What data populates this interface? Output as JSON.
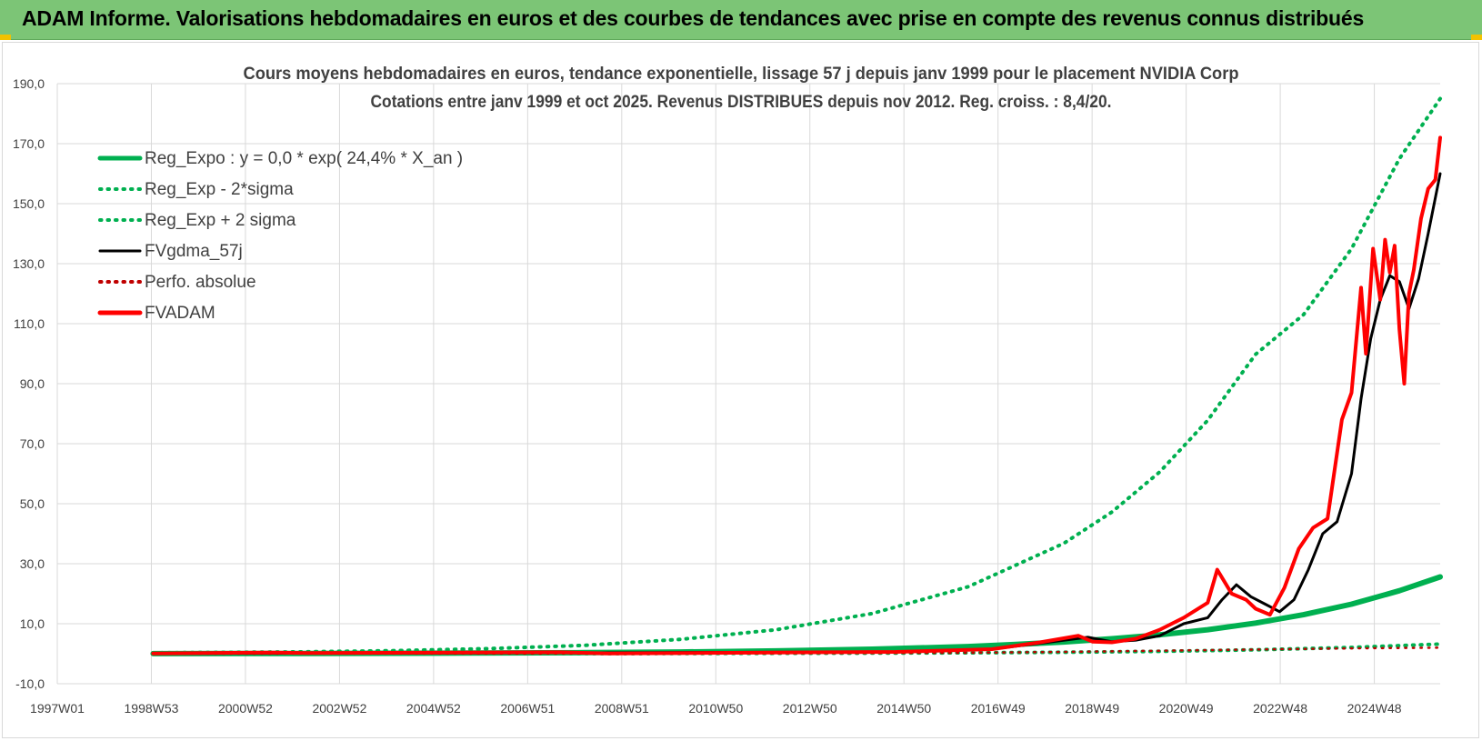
{
  "banner": {
    "title": "ADAM Informe. Valorisations hebdomadaires en euros et des courbes de tendances avec prise en compte des revenus connus distribués",
    "background": "#7cc576"
  },
  "chart_data": {
    "type": "line",
    "title_line1": "Cours moyens hebdomadaires en euros, tendance exponentielle, lissage 57 j depuis janv 1999 pour le placement NVIDIA Corp",
    "title_line2": "Cotations entre janv 1999 et oct 2025. Revenus DISTRIBUES depuis nov 2012.  Reg. croiss. : 8,4/20.",
    "x_tick_labels": [
      "1997W01",
      "1998W53",
      "2000W52",
      "2002W52",
      "2004W52",
      "2006W51",
      "2008W51",
      "2010W50",
      "2012W50",
      "2014W50",
      "2016W49",
      "2018W49",
      "2020W49",
      "2022W48",
      "2024W48"
    ],
    "x_range": [
      1997.0,
      2025.85
    ],
    "ylim": [
      -10,
      190
    ],
    "y_ticks": [
      -10,
      10,
      30,
      50,
      70,
      90,
      110,
      130,
      150,
      170,
      190
    ],
    "y_tick_labels": [
      "-10,0",
      "10,0",
      "30,0",
      "50,0",
      "70,0",
      "90,0",
      "110,0",
      "130,0",
      "150,0",
      "170,0",
      "190,0"
    ],
    "grid": true,
    "legend_position": "top-left",
    "series": [
      {
        "name": "Reg_Expo : y = 0,0 * exp( 24,4% *  X_an )",
        "color": "#00b050",
        "style": "solid",
        "x": [
          1999.0,
          2002.0,
          2005.0,
          2008.0,
          2010.0,
          2012.0,
          2014.0,
          2016.0,
          2017.0,
          2018.0,
          2019.0,
          2020.0,
          2021.0,
          2022.0,
          2023.0,
          2024.0,
          2025.0,
          2025.85
        ],
        "y": [
          0.04,
          0.08,
          0.17,
          0.35,
          0.57,
          0.93,
          1.5,
          2.4,
          3.1,
          3.9,
          5.0,
          6.3,
          8.0,
          10.2,
          13.0,
          16.5,
          21.0,
          25.6
        ]
      },
      {
        "name": "Reg_Exp - 2*sigma",
        "color": "#00b050",
        "style": "dotted",
        "x": [
          1999.0,
          2005.0,
          2010.0,
          2014.0,
          2016.0,
          2018.0,
          2020.0,
          2022.0,
          2024.0,
          2025.85
        ],
        "y": [
          0.01,
          0.03,
          0.07,
          0.2,
          0.3,
          0.5,
          0.8,
          1.3,
          2.1,
          3.2
        ]
      },
      {
        "name": "Reg_Exp + 2 sigma",
        "color": "#00b050",
        "style": "dotted",
        "x": [
          1999.0,
          2002.0,
          2004.0,
          2006.0,
          2008.0,
          2010.0,
          2012.0,
          2014.0,
          2016.0,
          2018.0,
          2019.0,
          2020.0,
          2021.0,
          2022.0,
          2023.0,
          2024.0,
          2025.0,
          2025.85
        ],
        "y": [
          0.3,
          0.6,
          1.0,
          1.7,
          2.8,
          4.8,
          8.0,
          13.4,
          22.3,
          36.8,
          47.2,
          60.6,
          77.8,
          99.8,
          113.0,
          135.0,
          165.0,
          185.0
        ]
      },
      {
        "name": "FVgdma_57j",
        "color": "#000000",
        "style": "solid",
        "x": [
          1999.0,
          2007.5,
          2014.5,
          2016.5,
          2017.5,
          2018.5,
          2019.0,
          2019.5,
          2020.0,
          2020.5,
          2021.0,
          2021.3,
          2021.6,
          2021.9,
          2022.2,
          2022.5,
          2022.8,
          2023.1,
          2023.4,
          2023.7,
          2024.0,
          2024.2,
          2024.4,
          2024.6,
          2024.8,
          2025.0,
          2025.2,
          2025.4,
          2025.6,
          2025.85
        ],
        "y": [
          0.1,
          0.3,
          0.6,
          1.5,
          3.5,
          5.5,
          4.0,
          4.5,
          6.0,
          10.0,
          12.0,
          18.0,
          23.0,
          19.0,
          16.5,
          14.0,
          18.0,
          28.0,
          40.0,
          44.0,
          60.0,
          85.0,
          105.0,
          118.0,
          126.0,
          124.0,
          115.0,
          125.0,
          140.0,
          160.0
        ]
      },
      {
        "name": "Perfo. absolue",
        "color": "#c00000",
        "style": "dotted",
        "x": [
          1999.0,
          2012.0,
          2016.0,
          2018.0,
          2020.0,
          2022.0,
          2024.0,
          2025.85
        ],
        "y": [
          0.0,
          0.1,
          0.3,
          0.6,
          1.0,
          1.4,
          1.8,
          2.0
        ]
      },
      {
        "name": "FVADAM",
        "color": "#ff0000",
        "style": "solid",
        "x": [
          1999.0,
          2001.5,
          2002.2,
          2007.5,
          2008.5,
          2014.5,
          2016.5,
          2017.5,
          2018.3,
          2018.6,
          2019.0,
          2019.5,
          2020.0,
          2020.5,
          2021.0,
          2021.2,
          2021.5,
          2021.8,
          2022.0,
          2022.3,
          2022.6,
          2022.9,
          2023.2,
          2023.5,
          2023.8,
          2024.0,
          2024.2,
          2024.3,
          2024.45,
          2024.6,
          2024.7,
          2024.8,
          2024.9,
          2025.0,
          2025.1,
          2025.2,
          2025.3,
          2025.45,
          2025.6,
          2025.75,
          2025.85
        ],
        "y": [
          0.1,
          0.4,
          0.2,
          0.5,
          0.1,
          0.6,
          1.5,
          3.8,
          6.0,
          4.0,
          3.8,
          5.0,
          8.0,
          12.0,
          17.0,
          28.0,
          20.0,
          18.0,
          15.0,
          13.0,
          22.0,
          35.0,
          42.0,
          45.0,
          78.0,
          87.0,
          122.0,
          100.0,
          135.0,
          118.0,
          138.0,
          127.0,
          136.0,
          108.0,
          90.0,
          120.0,
          128.0,
          145.0,
          155.0,
          158.0,
          172.0
        ]
      }
    ]
  }
}
